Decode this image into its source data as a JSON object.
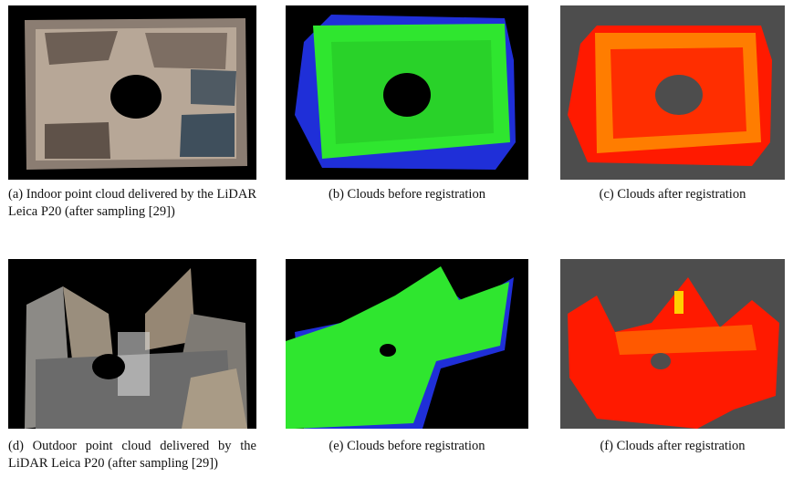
{
  "figure": {
    "panels": [
      {
        "id": "a",
        "caption": "(a) Indoor point cloud delivered by the LiDAR Leica P20 (after sampling [29])"
      },
      {
        "id": "b",
        "caption": "(b) Clouds before registration"
      },
      {
        "id": "c",
        "caption": "(c) Clouds after registration"
      },
      {
        "id": "d",
        "caption": "(d) Outdoor point cloud delivered by the LiDAR Leica P20 (after sampling [29])"
      },
      {
        "id": "e",
        "caption": "(e) Clouds before registration"
      },
      {
        "id": "f",
        "caption": "(f) Clouds after registration"
      }
    ],
    "colors": {
      "source_cloud": "#2fe62f",
      "target_cloud": "#1f2fd8",
      "registered_cloud": "#ff1a00",
      "registered_overlap": "#ffd000",
      "viewer_bg_dark": "#000000",
      "viewer_bg_gray": "#4d4d4d"
    }
  }
}
